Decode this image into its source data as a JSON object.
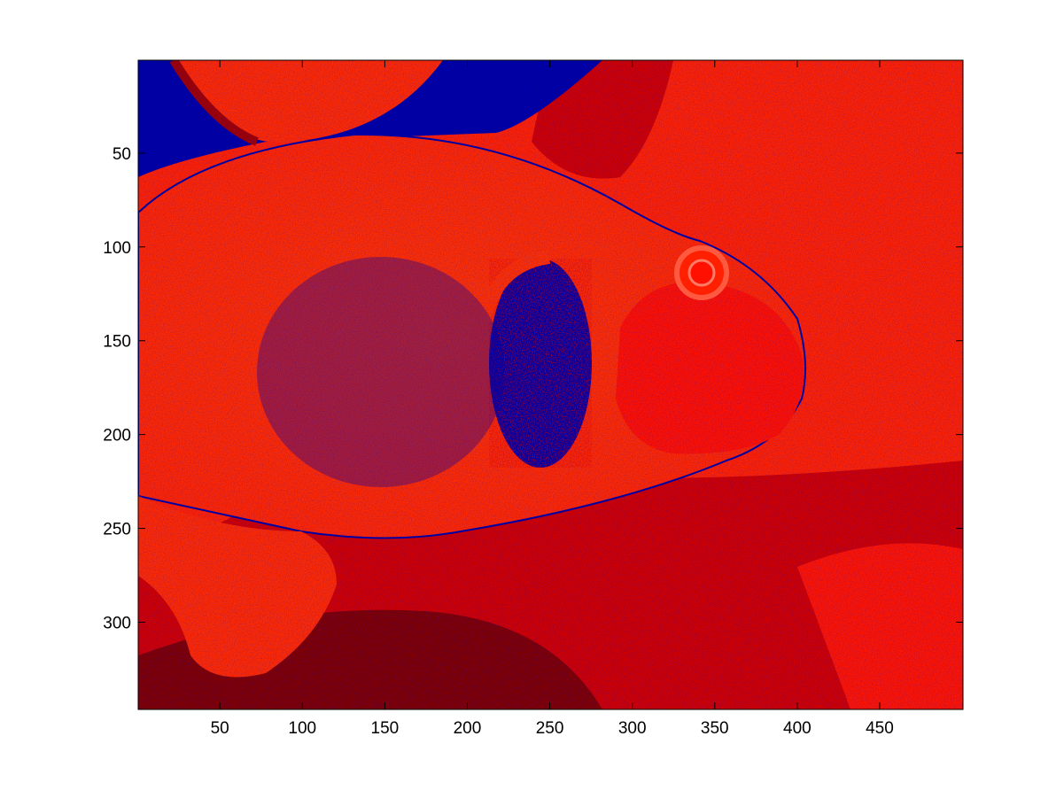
{
  "figure": {
    "background": "#ffffff",
    "image_description_colors": {
      "orange_red": "#ff2a00",
      "bright_red": "#ff1500",
      "dark_red": "#d00000",
      "maroon": "#800000",
      "navy": "#0000a0",
      "background_red": "#ff2200"
    }
  },
  "axes": {
    "x": {
      "range": [
        1,
        500
      ],
      "ticks": [
        {
          "value": 50,
          "label": "50"
        },
        {
          "value": 100,
          "label": "100"
        },
        {
          "value": 150,
          "label": "150"
        },
        {
          "value": 200,
          "label": "200"
        },
        {
          "value": 250,
          "label": "250"
        },
        {
          "value": 300,
          "label": "300"
        },
        {
          "value": 350,
          "label": "350"
        },
        {
          "value": 400,
          "label": "400"
        },
        {
          "value": 450,
          "label": "450"
        }
      ]
    },
    "y": {
      "range": [
        1,
        346
      ],
      "reversed": true,
      "ticks": [
        {
          "value": 50,
          "label": "50"
        },
        {
          "value": 100,
          "label": "100"
        },
        {
          "value": 150,
          "label": "150"
        },
        {
          "value": 200,
          "label": "200"
        },
        {
          "value": 250,
          "label": "250"
        },
        {
          "value": 300,
          "label": "300"
        }
      ]
    }
  }
}
